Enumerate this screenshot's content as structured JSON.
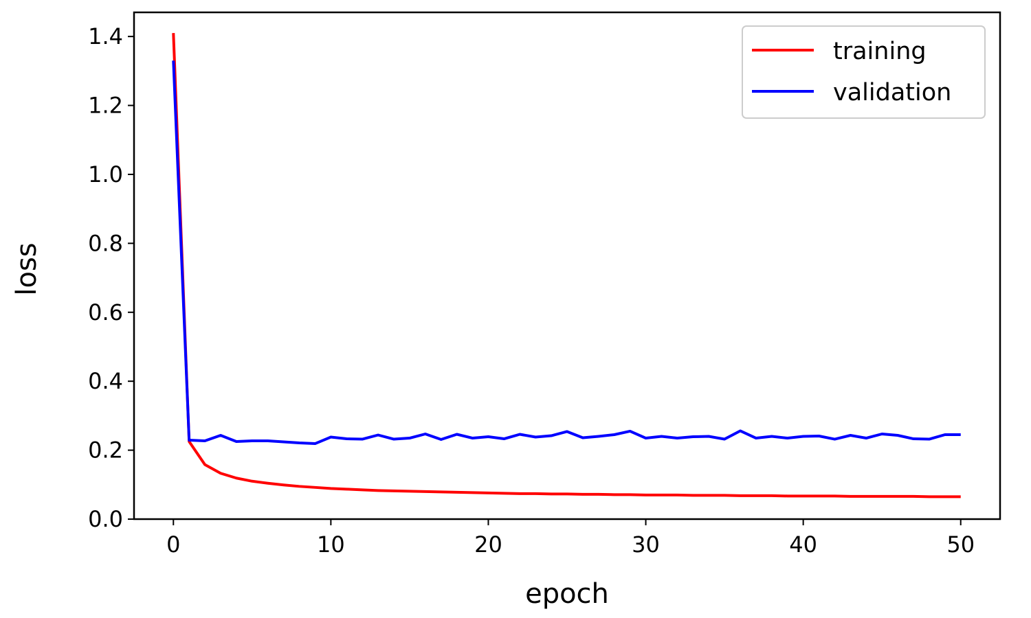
{
  "chart_data": {
    "type": "line",
    "title": "",
    "xlabel": "epoch",
    "ylabel": "loss",
    "xlim": [
      -2.5,
      52.5
    ],
    "ylim": [
      0.0,
      1.47
    ],
    "xticks": [
      0,
      10,
      20,
      30,
      40,
      50
    ],
    "xtick_labels": [
      "0",
      "10",
      "20",
      "30",
      "40",
      "50"
    ],
    "yticks": [
      0.0,
      0.2,
      0.4,
      0.6,
      0.8,
      1.0,
      1.2,
      1.4
    ],
    "ytick_labels": [
      "0.0",
      "0.2",
      "0.4",
      "0.6",
      "0.8",
      "1.0",
      "1.2",
      "1.4"
    ],
    "grid": false,
    "legend_position": "top-right",
    "x": [
      0,
      1,
      2,
      3,
      4,
      5,
      6,
      7,
      8,
      9,
      10,
      11,
      12,
      13,
      14,
      15,
      16,
      17,
      18,
      19,
      20,
      21,
      22,
      23,
      24,
      25,
      26,
      27,
      28,
      29,
      30,
      31,
      32,
      33,
      34,
      35,
      36,
      37,
      38,
      39,
      40,
      41,
      42,
      43,
      44,
      45,
      46,
      47,
      48,
      49,
      50
    ],
    "series": [
      {
        "name": "training",
        "color": "#ff0000",
        "values": [
          1.41,
          0.225,
          0.158,
          0.133,
          0.119,
          0.11,
          0.104,
          0.099,
          0.095,
          0.092,
          0.089,
          0.087,
          0.085,
          0.083,
          0.082,
          0.081,
          0.08,
          0.079,
          0.078,
          0.077,
          0.076,
          0.075,
          0.074,
          0.074,
          0.073,
          0.073,
          0.072,
          0.072,
          0.071,
          0.071,
          0.07,
          0.07,
          0.07,
          0.069,
          0.069,
          0.069,
          0.068,
          0.068,
          0.068,
          0.067,
          0.067,
          0.067,
          0.067,
          0.066,
          0.066,
          0.066,
          0.066,
          0.066,
          0.065,
          0.065,
          0.065
        ]
      },
      {
        "name": "validation",
        "color": "#0000ff",
        "values": [
          1.33,
          0.229,
          0.227,
          0.243,
          0.225,
          0.227,
          0.227,
          0.224,
          0.221,
          0.219,
          0.238,
          0.233,
          0.232,
          0.244,
          0.232,
          0.235,
          0.247,
          0.231,
          0.246,
          0.235,
          0.239,
          0.233,
          0.246,
          0.238,
          0.242,
          0.254,
          0.236,
          0.24,
          0.245,
          0.255,
          0.235,
          0.24,
          0.235,
          0.239,
          0.24,
          0.232,
          0.256,
          0.235,
          0.24,
          0.235,
          0.24,
          0.241,
          0.232,
          0.243,
          0.235,
          0.247,
          0.243,
          0.233,
          0.232,
          0.245,
          0.245
        ]
      }
    ]
  }
}
